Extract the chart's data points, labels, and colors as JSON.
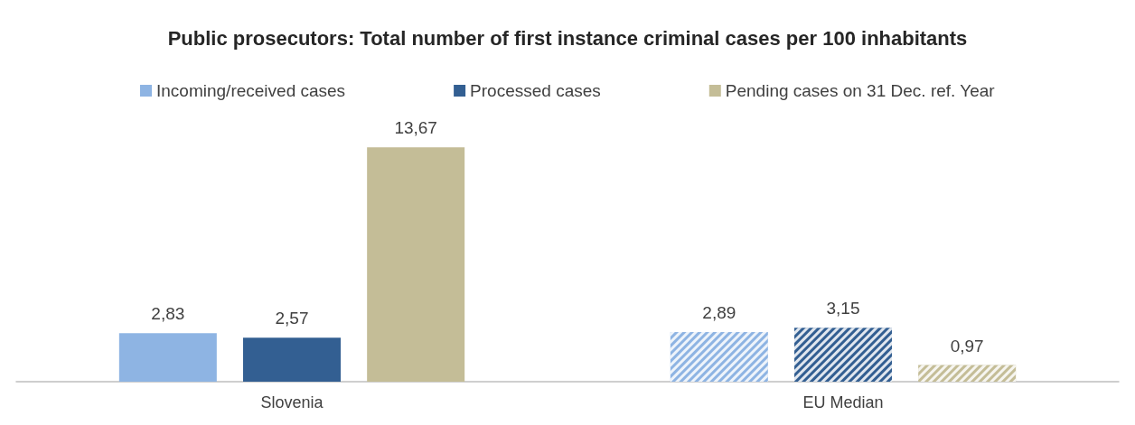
{
  "chart_data": {
    "type": "bar",
    "title": "Public prosecutors: Total number of first instance criminal cases per 100 inhabitants",
    "categories": [
      "Slovenia",
      "EU Median"
    ],
    "series": [
      {
        "name": "Incoming/received cases",
        "color": "#8eb4e3",
        "values": [
          2.83,
          2.89
        ],
        "value_labels": [
          "2,83",
          "2,89"
        ]
      },
      {
        "name": "Processed cases",
        "color": "#335f92",
        "values": [
          2.57,
          3.15
        ],
        "value_labels": [
          "2,57",
          "3,15"
        ]
      },
      {
        "name": "Pending cases on 31 Dec. ref. Year",
        "color": "#c4bd97",
        "values": [
          13.67,
          0.97
        ],
        "value_labels": [
          "13,67",
          "0,97"
        ]
      }
    ],
    "legend": "top"
  }
}
